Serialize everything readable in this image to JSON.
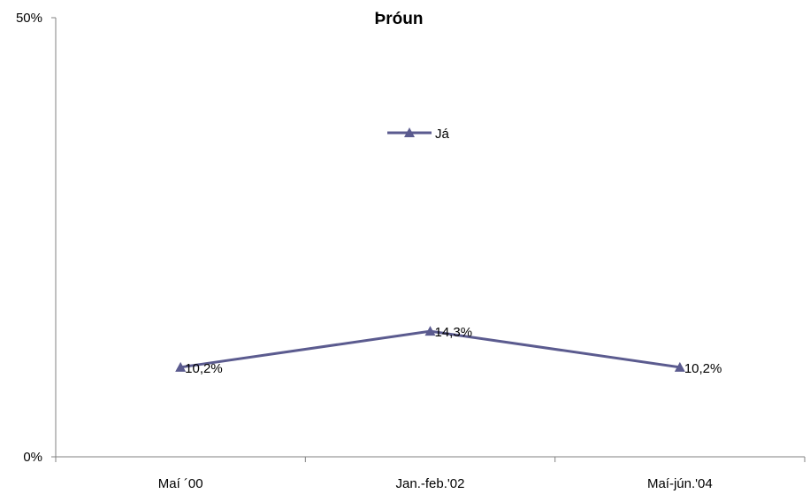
{
  "chart_data": {
    "type": "line",
    "title": "Þróun",
    "categories": [
      "Maí ´00",
      "Jan.-feb.'02",
      "Maí-jún.'04"
    ],
    "series": [
      {
        "name": "Já",
        "values": [
          10.2,
          14.3,
          10.2
        ],
        "value_labels": [
          "10,2%",
          "14,3%",
          "10,2%"
        ],
        "color": "#5b5b8f",
        "marker": "triangle"
      }
    ],
    "ylim": [
      0,
      50
    ],
    "y_ticks": [
      "0%",
      "50%"
    ],
    "xlabel": "",
    "ylabel": "",
    "grid": false,
    "legend": "upper-center"
  }
}
